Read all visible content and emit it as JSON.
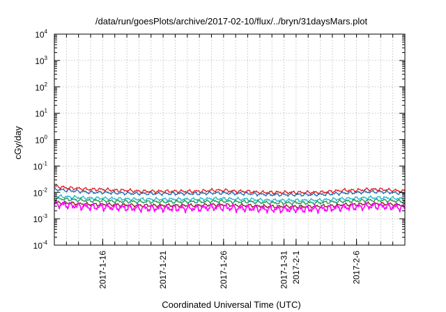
{
  "chart_data": {
    "type": "line",
    "title": "/data/run/goesPlots/archive/2017-02-10/flux/../bryn/31daysMars.plot",
    "xlabel": "Coordinated Universal Time (UTC)",
    "ylabel": "cGy/day",
    "y_scale": "log",
    "ylim": [
      0.0001,
      10000
    ],
    "xlim": [
      "2017-01-12",
      "2017-02-10"
    ],
    "grid": true,
    "legend": "none",
    "y_ticks": [
      {
        "base": "10",
        "exp": "-4",
        "value": 0.0001
      },
      {
        "base": "10",
        "exp": "-3",
        "value": 0.001
      },
      {
        "base": "10",
        "exp": "-2",
        "value": 0.01
      },
      {
        "base": "10",
        "exp": "-1",
        "value": 0.1
      },
      {
        "base": "10",
        "exp": "0",
        "value": 1
      },
      {
        "base": "10",
        "exp": "1",
        "value": 10
      },
      {
        "base": "10",
        "exp": "2",
        "value": 100
      },
      {
        "base": "10",
        "exp": "3",
        "value": 1000
      },
      {
        "base": "10",
        "exp": "4",
        "value": 10000
      }
    ],
    "x_ticks": [
      {
        "label": "2017-1-16",
        "date": "2017-01-16"
      },
      {
        "label": "2017-1-21",
        "date": "2017-01-21"
      },
      {
        "label": "2017-1-26",
        "date": "2017-01-26"
      },
      {
        "label": "2017-1-31",
        "date": "2017-01-31"
      },
      {
        "label": "2017-2-1",
        "date": "2017-02-01"
      },
      {
        "label": "2017-2-6",
        "date": "2017-02-06"
      }
    ],
    "series": [
      {
        "color": "#e41a1c",
        "x": [
          "2017-01-12",
          "2017-01-13",
          "2017-01-14",
          "2017-01-15",
          "2017-01-16",
          "2017-01-17",
          "2017-01-18",
          "2017-01-19",
          "2017-01-20",
          "2017-01-21",
          "2017-01-22",
          "2017-01-23",
          "2017-01-24",
          "2017-01-25",
          "2017-01-26",
          "2017-01-27",
          "2017-01-28",
          "2017-01-29",
          "2017-01-30",
          "2017-01-31",
          "2017-02-01",
          "2017-02-02",
          "2017-02-03",
          "2017-02-04",
          "2017-02-05",
          "2017-02-06",
          "2017-02-07",
          "2017-02-08",
          "2017-02-09",
          "2017-02-10"
        ],
        "y": [
          0.017,
          0.015,
          0.014,
          0.013,
          0.013,
          0.012,
          0.012,
          0.011,
          0.011,
          0.011,
          0.011,
          0.011,
          0.011,
          0.012,
          0.012,
          0.011,
          0.011,
          0.01,
          0.01,
          0.01,
          0.01,
          0.01,
          0.01,
          0.011,
          0.012,
          0.012,
          0.013,
          0.013,
          0.012,
          0.011
        ]
      },
      {
        "color": "#2166ac",
        "x": [
          "2017-01-12",
          "2017-01-13",
          "2017-01-14",
          "2017-01-15",
          "2017-01-16",
          "2017-01-17",
          "2017-01-18",
          "2017-01-19",
          "2017-01-20",
          "2017-01-21",
          "2017-01-22",
          "2017-01-23",
          "2017-01-24",
          "2017-01-25",
          "2017-01-26",
          "2017-01-27",
          "2017-01-28",
          "2017-01-29",
          "2017-01-30",
          "2017-01-31",
          "2017-02-01",
          "2017-02-02",
          "2017-02-03",
          "2017-02-04",
          "2017-02-05",
          "2017-02-06",
          "2017-02-07",
          "2017-02-08",
          "2017-02-09",
          "2017-02-10"
        ],
        "y": [
          0.013,
          0.012,
          0.011,
          0.01,
          0.01,
          0.0095,
          0.0092,
          0.009,
          0.009,
          0.009,
          0.009,
          0.009,
          0.009,
          0.0095,
          0.0095,
          0.009,
          0.009,
          0.0085,
          0.0082,
          0.0082,
          0.0082,
          0.0082,
          0.0083,
          0.0088,
          0.0095,
          0.0098,
          0.0105,
          0.0105,
          0.0098,
          0.009
        ]
      },
      {
        "color": "#1fb8c8",
        "x": [
          "2017-01-12",
          "2017-01-13",
          "2017-01-14",
          "2017-01-15",
          "2017-01-16",
          "2017-01-17",
          "2017-01-18",
          "2017-01-19",
          "2017-01-20",
          "2017-01-21",
          "2017-01-22",
          "2017-01-23",
          "2017-01-24",
          "2017-01-25",
          "2017-01-26",
          "2017-01-27",
          "2017-01-28",
          "2017-01-29",
          "2017-01-30",
          "2017-01-31",
          "2017-02-01",
          "2017-02-02",
          "2017-02-03",
          "2017-02-04",
          "2017-02-05",
          "2017-02-06",
          "2017-02-07",
          "2017-02-08",
          "2017-02-09",
          "2017-02-10"
        ],
        "y": [
          0.0072,
          0.0068,
          0.0064,
          0.006,
          0.006,
          0.0058,
          0.0056,
          0.0055,
          0.0055,
          0.0055,
          0.0055,
          0.0055,
          0.0055,
          0.0058,
          0.0058,
          0.0055,
          0.0055,
          0.0052,
          0.005,
          0.005,
          0.005,
          0.005,
          0.0051,
          0.0054,
          0.0058,
          0.006,
          0.0063,
          0.0063,
          0.006,
          0.0056
        ]
      },
      {
        "color": "#1a9850",
        "x": [
          "2017-01-12",
          "2017-01-13",
          "2017-01-14",
          "2017-01-15",
          "2017-01-16",
          "2017-01-17",
          "2017-01-18",
          "2017-01-19",
          "2017-01-20",
          "2017-01-21",
          "2017-01-22",
          "2017-01-23",
          "2017-01-24",
          "2017-01-25",
          "2017-01-26",
          "2017-01-27",
          "2017-01-28",
          "2017-01-29",
          "2017-01-30",
          "2017-01-31",
          "2017-02-01",
          "2017-02-02",
          "2017-02-03",
          "2017-02-04",
          "2017-02-05",
          "2017-02-06",
          "2017-02-07",
          "2017-02-08",
          "2017-02-09",
          "2017-02-10"
        ],
        "y": [
          0.0058,
          0.0055,
          0.0051,
          0.0048,
          0.0048,
          0.0046,
          0.0045,
          0.0044,
          0.0044,
          0.0044,
          0.0044,
          0.0044,
          0.0044,
          0.0046,
          0.0046,
          0.0044,
          0.0044,
          0.0042,
          0.004,
          0.004,
          0.004,
          0.004,
          0.0041,
          0.0043,
          0.0046,
          0.0048,
          0.005,
          0.005,
          0.0048,
          0.0045
        ]
      },
      {
        "color": "#8b1a1a",
        "x": [
          "2017-01-12",
          "2017-01-13",
          "2017-01-14",
          "2017-01-15",
          "2017-01-16",
          "2017-01-17",
          "2017-01-18",
          "2017-01-19",
          "2017-01-20",
          "2017-01-21",
          "2017-01-22",
          "2017-01-23",
          "2017-01-24",
          "2017-01-25",
          "2017-01-26",
          "2017-01-27",
          "2017-01-28",
          "2017-01-29",
          "2017-01-30",
          "2017-01-31",
          "2017-02-01",
          "2017-02-02",
          "2017-02-03",
          "2017-02-04",
          "2017-02-05",
          "2017-02-06",
          "2017-02-07",
          "2017-02-08",
          "2017-02-09",
          "2017-02-10"
        ],
        "y": [
          0.0042,
          0.004,
          0.0037,
          0.0035,
          0.0035,
          0.0034,
          0.0033,
          0.0032,
          0.0032,
          0.0032,
          0.0032,
          0.0032,
          0.0032,
          0.0034,
          0.0034,
          0.0032,
          0.0032,
          0.003,
          0.0029,
          0.0029,
          0.0029,
          0.0029,
          0.003,
          0.0031,
          0.0034,
          0.0035,
          0.0037,
          0.0037,
          0.0035,
          0.0033
        ]
      },
      {
        "color": "#ff00ff",
        "x": [
          "2017-01-12",
          "2017-01-13",
          "2017-01-14",
          "2017-01-15",
          "2017-01-16",
          "2017-01-17",
          "2017-01-18",
          "2017-01-19",
          "2017-01-20",
          "2017-01-21",
          "2017-01-22",
          "2017-01-23",
          "2017-01-24",
          "2017-01-25",
          "2017-01-26",
          "2017-01-27",
          "2017-01-28",
          "2017-01-29",
          "2017-01-30",
          "2017-01-31",
          "2017-02-01",
          "2017-02-02",
          "2017-02-03",
          "2017-02-04",
          "2017-02-05",
          "2017-02-06",
          "2017-02-07",
          "2017-02-08",
          "2017-02-09",
          "2017-02-10"
        ],
        "y": [
          0.0035,
          0.0033,
          0.003,
          0.0028,
          0.0028,
          0.0027,
          0.0026,
          0.0025,
          0.0025,
          0.0025,
          0.0025,
          0.0025,
          0.0025,
          0.0027,
          0.0027,
          0.0025,
          0.0025,
          0.0024,
          0.0023,
          0.0023,
          0.0023,
          0.0023,
          0.0024,
          0.0025,
          0.0027,
          0.0028,
          0.003,
          0.003,
          0.0028,
          0.0026
        ]
      }
    ]
  }
}
